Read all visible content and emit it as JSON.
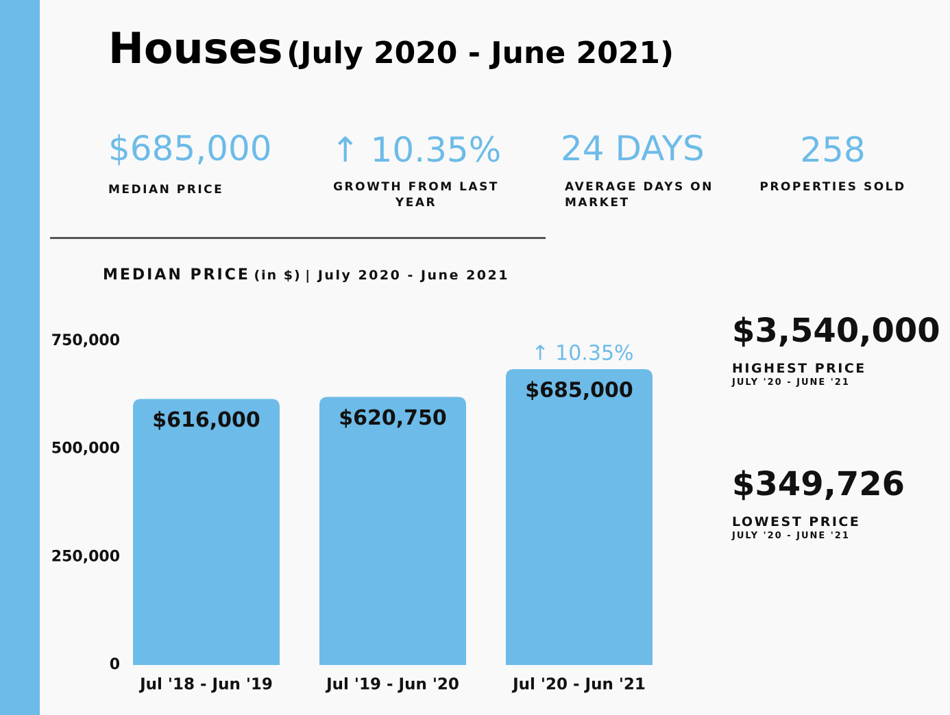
{
  "header": {
    "title": "Houses",
    "subtitle": "(July 2020 - June 2021)"
  },
  "stats": [
    {
      "value": "$685,000",
      "label": "MEDIAN PRICE"
    },
    {
      "value": "↑ 10.35%",
      "label": "GROWTH FROM LAST YEAR"
    },
    {
      "value": "24 DAYS",
      "label": "AVERAGE DAYS ON MARKET"
    },
    {
      "value": "258",
      "label": "PROPERTIES SOLD"
    }
  ],
  "chart_data": {
    "type": "bar",
    "title": "MEDIAN PRICE",
    "title_note": "(in $)",
    "subtitle": "| July 2020 - June 2021",
    "categories": [
      "Jul '18 - Jun '19",
      "Jul '19 - Jun '20",
      "Jul '20 - Jun '21"
    ],
    "values": [
      616000,
      620750,
      685000
    ],
    "value_labels": [
      "$616,000",
      "$620,750",
      "$685,000"
    ],
    "color": "#6dbbe8",
    "ylim": [
      0,
      750000
    ],
    "yticks": [
      0,
      {
        "value": 250000,
        "label": "250,000"
      },
      {
        "value": 500000,
        "label": "500,000"
      },
      {
        "value": 750000,
        "label": "750,000"
      }
    ],
    "grid": false,
    "annotations": [
      {
        "text": "↑ 10.35%",
        "x": "Jul '20 - Jun '21"
      }
    ]
  },
  "side": [
    {
      "value": "$3,540,000",
      "label": "HIGHEST PRICE",
      "period": "JULY '20 - JUNE '21"
    },
    {
      "value": "$349,726",
      "label": "LOWEST PRICE",
      "period": "JULY '20 - JUNE '21"
    }
  ]
}
